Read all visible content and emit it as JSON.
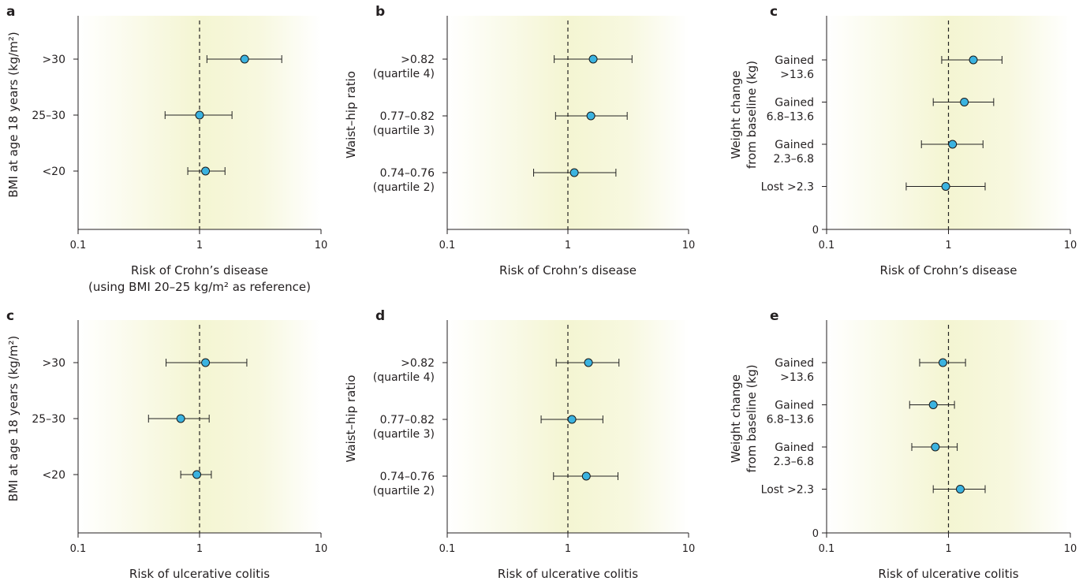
{
  "chart_data": [
    {
      "panel": "a",
      "type": "scatter",
      "xscale": "log",
      "xlim": [
        0.1,
        10
      ],
      "xticks": [
        0.1,
        1,
        10
      ],
      "xticklabels": [
        "0.1",
        "1",
        "10"
      ],
      "reference_line": 1,
      "xlabel": "Risk of Crohn’s disease",
      "xlabel2": "(using BMI 20–25 kg/m² as reference)",
      "ylabel": "BMI at age 18 years (kg/m²)",
      "ylabel_lines": [
        "BMI at age 18 years (kg/m²)"
      ],
      "categories": [
        {
          "label": [
            ">30"
          ],
          "estimate": 2.35,
          "ci": [
            1.15,
            4.75
          ]
        },
        {
          "label": [
            "25–30"
          ],
          "estimate": 1.0,
          "ci": [
            0.52,
            1.85
          ]
        },
        {
          "label": [
            "<20"
          ],
          "estimate": 1.12,
          "ci": [
            0.8,
            1.62
          ]
        }
      ],
      "yzero": false
    },
    {
      "panel": "b",
      "type": "scatter",
      "xscale": "log",
      "xlim": [
        0.1,
        10
      ],
      "xticks": [
        0.1,
        1,
        10
      ],
      "xticklabels": [
        "0.1",
        "1",
        "10"
      ],
      "reference_line": 1,
      "xlabel": "Risk of Crohn’s disease",
      "xlabel2": "",
      "ylabel": "Waist–hip ratio",
      "ylabel_lines": [
        "Waist–hip ratio"
      ],
      "categories": [
        {
          "label": [
            ">0.82",
            "(quartile 4)"
          ],
          "estimate": 1.62,
          "ci": [
            0.77,
            3.4
          ]
        },
        {
          "label": [
            "0.77–0.82",
            "(quartile 3)"
          ],
          "estimate": 1.55,
          "ci": [
            0.79,
            3.1
          ]
        },
        {
          "label": [
            "0.74–0.76",
            "(quartile 2)"
          ],
          "estimate": 1.13,
          "ci": [
            0.52,
            2.5
          ]
        }
      ],
      "yzero": false
    },
    {
      "panel": "c",
      "type": "scatter",
      "xscale": "log",
      "xlim": [
        0.1,
        10
      ],
      "xticks": [
        0.1,
        1,
        10
      ],
      "xticklabels": [
        "0.1",
        "1",
        "10"
      ],
      "reference_line": 1,
      "xlabel": "Risk of Crohn’s disease",
      "xlabel2": "",
      "ylabel": "Weight change from baseline (kg)",
      "ylabel_lines": [
        "Weight change",
        "from baseline (kg)"
      ],
      "categories": [
        {
          "label": [
            "Gained",
            ">13.6"
          ],
          "estimate": 1.6,
          "ci": [
            0.88,
            2.75
          ]
        },
        {
          "label": [
            "Gained",
            "6.8–13.6"
          ],
          "estimate": 1.35,
          "ci": [
            0.75,
            2.35
          ]
        },
        {
          "label": [
            "Gained",
            "2.3–6.8"
          ],
          "estimate": 1.08,
          "ci": [
            0.6,
            1.92
          ]
        },
        {
          "label": [
            "Lost >2.3"
          ],
          "estimate": 0.95,
          "ci": [
            0.45,
            2.0
          ]
        }
      ],
      "yzero": true
    },
    {
      "panel": "c",
      "type": "scatter",
      "xscale": "log",
      "xlim": [
        0.1,
        10
      ],
      "xticks": [
        0.1,
        1,
        10
      ],
      "xticklabels": [
        "0.1",
        "1",
        "10"
      ],
      "reference_line": 1,
      "xlabel": "Risk of ulcerative colitis",
      "xlabel2": "",
      "ylabel": "BMI at age 18 years (kg/m²)",
      "ylabel_lines": [
        "BMI at age 18 years (kg/m²)"
      ],
      "categories": [
        {
          "label": [
            ">30"
          ],
          "estimate": 1.12,
          "ci": [
            0.53,
            2.45
          ]
        },
        {
          "label": [
            "25–30"
          ],
          "estimate": 0.7,
          "ci": [
            0.38,
            1.2
          ]
        },
        {
          "label": [
            "<20"
          ],
          "estimate": 0.95,
          "ci": [
            0.7,
            1.25
          ]
        }
      ],
      "yzero": false
    },
    {
      "panel": "d",
      "type": "scatter",
      "xscale": "log",
      "xlim": [
        0.1,
        10
      ],
      "xticks": [
        0.1,
        1,
        10
      ],
      "xticklabels": [
        "0.1",
        "1",
        "10"
      ],
      "reference_line": 1,
      "xlabel": "Risk of ulcerative colitis",
      "xlabel2": "",
      "ylabel": "Waist–hip ratio",
      "ylabel_lines": [
        "Waist–hip ratio"
      ],
      "categories": [
        {
          "label": [
            ">0.82",
            "(quartile 4)"
          ],
          "estimate": 1.48,
          "ci": [
            0.8,
            2.65
          ]
        },
        {
          "label": [
            "0.77–0.82",
            "(quartile 3)"
          ],
          "estimate": 1.08,
          "ci": [
            0.6,
            1.95
          ]
        },
        {
          "label": [
            "0.74–0.76",
            "(quartile 2)"
          ],
          "estimate": 1.42,
          "ci": [
            0.76,
            2.6
          ]
        }
      ],
      "yzero": false
    },
    {
      "panel": "e",
      "type": "scatter",
      "xscale": "log",
      "xlim": [
        0.1,
        10
      ],
      "xticks": [
        0.1,
        1,
        10
      ],
      "xticklabels": [
        "0.1",
        "1",
        "10"
      ],
      "reference_line": 1,
      "xlabel": "Risk of ulcerative colitis",
      "xlabel2": "",
      "ylabel": "Weight change from baseline (kg)",
      "ylabel_lines": [
        "Weight change",
        "from baseline (kg)"
      ],
      "categories": [
        {
          "label": [
            "Gained",
            ">13.6"
          ],
          "estimate": 0.9,
          "ci": [
            0.58,
            1.38
          ]
        },
        {
          "label": [
            "Gained",
            "6.8–13.6"
          ],
          "estimate": 0.75,
          "ci": [
            0.48,
            1.12
          ]
        },
        {
          "label": [
            "Gained",
            "2.3–6.8"
          ],
          "estimate": 0.78,
          "ci": [
            0.5,
            1.18
          ]
        },
        {
          "label": [
            "Lost >2.3"
          ],
          "estimate": 1.25,
          "ci": [
            0.75,
            2.0
          ]
        }
      ],
      "yzero": true
    }
  ],
  "colors": {
    "marker_fill": "#3bb3e0",
    "marker_stroke": "#1a1a1a",
    "shading": "#f4f5d2",
    "axis": "#231f20"
  }
}
